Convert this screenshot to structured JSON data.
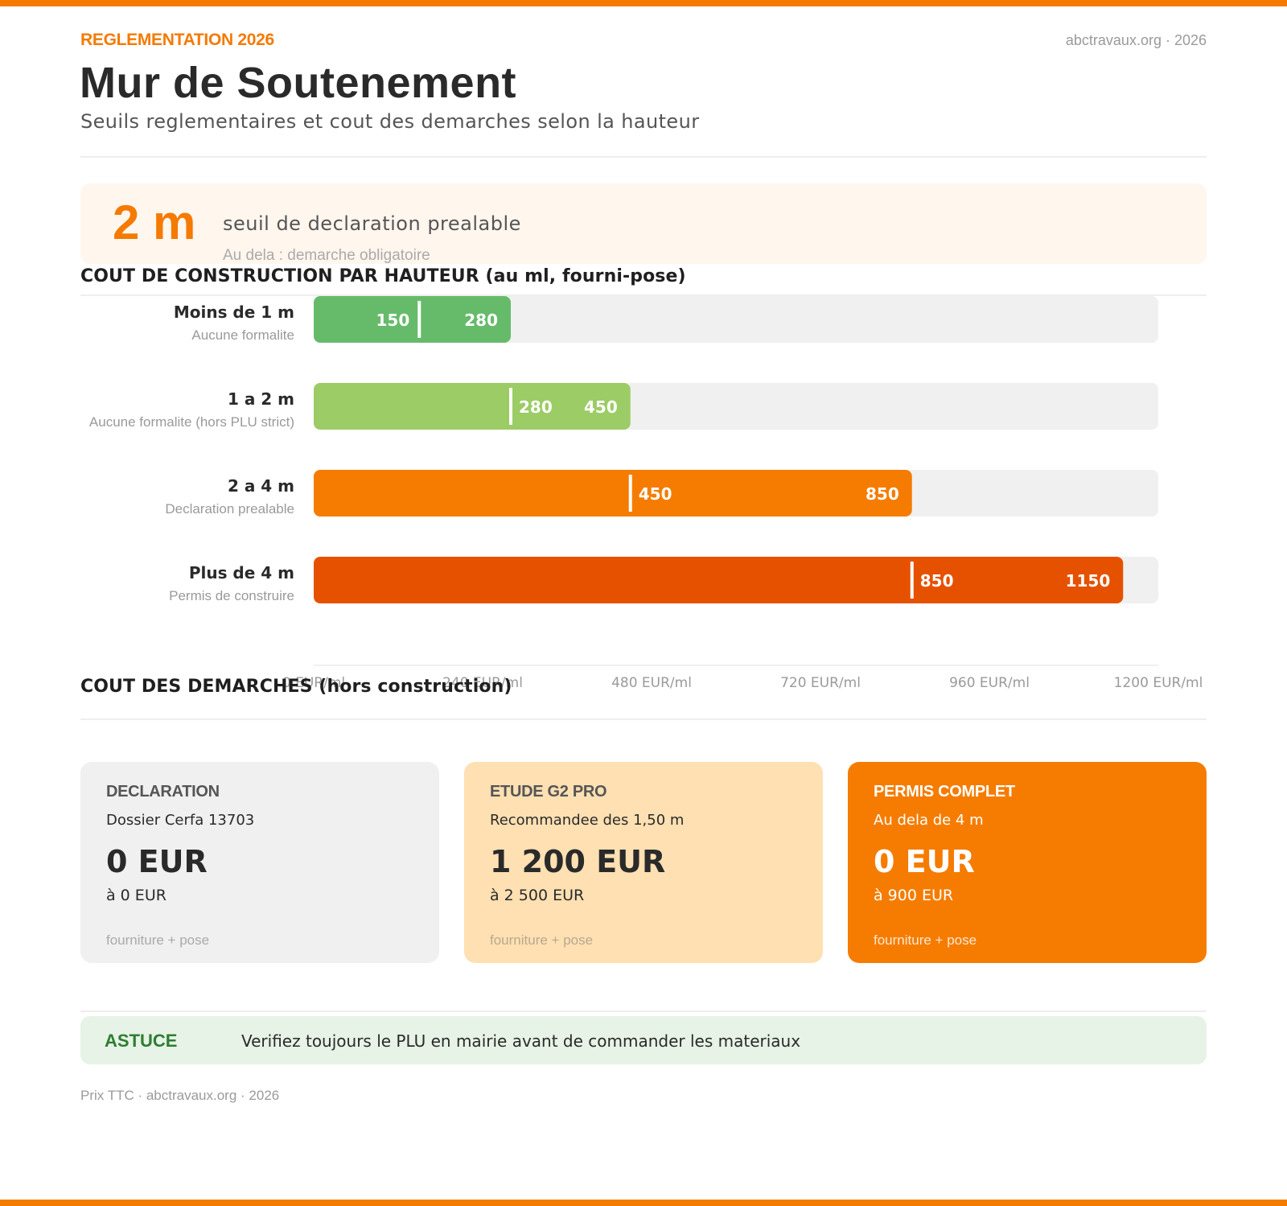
{
  "header": {
    "eyebrow": "REGLEMENTATION 2026",
    "site": "abctravaux.org · 2026",
    "title": "Mur de Soutenement",
    "subtitle": "Seuils reglementaires et cout des demarches selon la hauteur"
  },
  "callout": {
    "value": "2 m",
    "text": "seuil de declaration prealable",
    "sub": "Au dela : demarche obligatoire"
  },
  "sections": {
    "construction": "COUT DE CONSTRUCTION PAR HAUTEUR (au ml, fourni-pose)",
    "demarches": "COUT DES DEMARCHES (hors construction)"
  },
  "chart_data": {
    "type": "bar",
    "orientation": "horizontal-range",
    "title": "COUT DE CONSTRUCTION PAR HAUTEUR (au ml, fourni-pose)",
    "categories": [
      "Moins de 1 m",
      "1 a 2 m",
      "2 a 4 m",
      "Plus de 4 m"
    ],
    "descriptions": [
      "Aucune formalite",
      "Aucune formalite (hors PLU strict)",
      "Declaration prealable",
      "Permis de construire"
    ],
    "min_values": [
      150,
      280,
      450,
      850
    ],
    "max_values": [
      280,
      450,
      850,
      1150
    ],
    "colors": [
      "#66bb6a",
      "#9ccc65",
      "#f57c00",
      "#e65100"
    ],
    "xlim": [
      0,
      1200
    ],
    "xticks": [
      0,
      240,
      480,
      720,
      960,
      1200
    ],
    "tick_labels": [
      "0 EUR/ml",
      "240 EUR/ml",
      "480 EUR/ml",
      "720 EUR/ml",
      "960 EUR/ml",
      "1200 EUR/ml"
    ],
    "track_color": "#f0f0f0",
    "grid": false
  },
  "cards": [
    {
      "title": "DECLARATION",
      "sub": "Dossier Cerfa 13703",
      "price": "0 EUR",
      "range": "à 0 EUR",
      "foot": "fourniture + pose",
      "bg": "#f0f0f0",
      "title_color": "#555555",
      "text_color": "#2a2a2a",
      "foot_color": "#aaaaaa"
    },
    {
      "title": "ETUDE G2 PRO",
      "sub": "Recommandee des 1,50 m",
      "price": "1 200 EUR",
      "range": "à 2 500 EUR",
      "foot": "fourniture + pose",
      "bg": "#ffe0b2",
      "title_color": "#555555",
      "text_color": "#2a2a2a",
      "foot_color": "#b9a88f"
    },
    {
      "title": "PERMIS COMPLET",
      "sub": "Au dela de 4 m",
      "price": "0 EUR",
      "range": "à 900 EUR",
      "foot": "fourniture + pose",
      "bg": "#f57c00",
      "title_color": "#ffffff",
      "text_color": "#ffffff",
      "foot_color": "#ffe7cf"
    }
  ],
  "tip": {
    "label": "ASTUCE",
    "text": "Verifiez toujours le PLU en mairie avant de commander les materiaux"
  },
  "footer": "Prix TTC · abctravaux.org · 2026",
  "colors": {
    "accent": "#f47a00",
    "tip_bg": "#e6f3e6",
    "tip_label": "#2e7d32"
  }
}
